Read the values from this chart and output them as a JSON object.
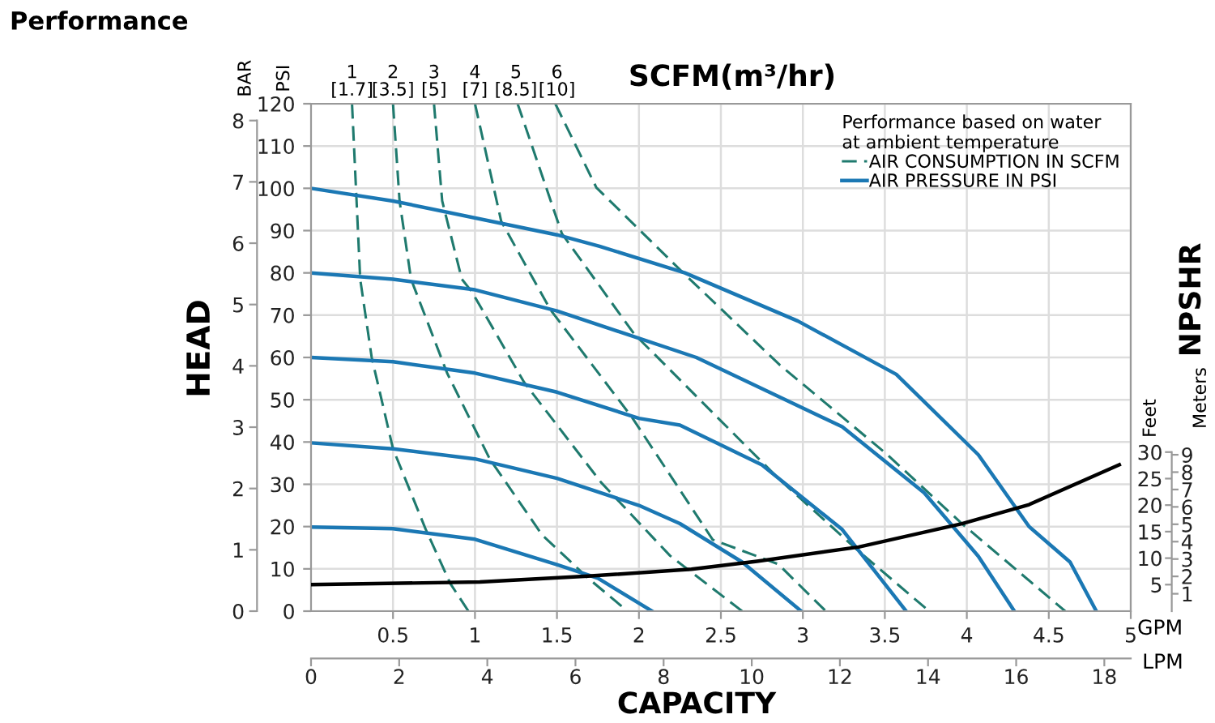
{
  "chart_data": [
    {
      "type": "line",
      "title": "Performance",
      "xlabel": "GPM",
      "ylabel": "PSI",
      "y2label": "BAR",
      "x2label": "LPM",
      "legend_title": "Performance based on water\nat ambient temperature",
      "annotations": [
        "SCFM(m³/hr)",
        "HEAD",
        "CAPACITY",
        {
          "text": "1\n[1.7]",
          "x": 0.25,
          "y": 120
        },
        {
          "text": "2\n[3.5]",
          "x": 0.5,
          "y": 120
        },
        {
          "text": "3\n[5]",
          "x": 0.75,
          "y": 120
        },
        {
          "text": "4\n[7]",
          "x": 1.0,
          "y": 120
        },
        {
          "text": "5\n[8.5]",
          "x": 1.25,
          "y": 120
        },
        {
          "text": "6\n[10]",
          "x": 1.5,
          "y": 120
        }
      ],
      "xlim": [
        0,
        5
      ],
      "xticks": [
        0.5,
        1,
        1.5,
        2,
        2.5,
        3,
        3.5,
        4,
        4.5,
        5
      ],
      "ylim": [
        0,
        120
      ],
      "yticks": [
        0,
        10,
        20,
        30,
        40,
        50,
        60,
        70,
        80,
        90,
        100,
        110,
        120
      ],
      "y2lim": [
        0,
        8.274
      ],
      "y2ticks": [
        0,
        1,
        2,
        3,
        4,
        5,
        6,
        7,
        8
      ],
      "x2lim": [
        0,
        18.6
      ],
      "x2ticks": [
        0,
        2,
        4,
        6,
        8,
        10,
        12,
        14,
        16,
        18
      ],
      "grid": true,
      "legend": "top right",
      "series": [
        {
          "name": "AIR CONSUMPTION IN SCFM",
          "color": "#1f7a6e",
          "line_style": "dashed",
          "x": [
            0.25,
            0.3,
            0.37,
            0.5,
            0.7,
            0.85,
            0.96
          ],
          "values": [
            120,
            78.5,
            60,
            38.4,
            19.3,
            6.5,
            0
          ]
        },
        {
          "color": "#1f7a6e",
          "line_style": "dashed",
          "x": [
            0.5,
            0.54,
            0.61,
            0.83,
            1.09,
            1.41,
            1.69,
            1.93
          ],
          "values": [
            120,
            97,
            78.5,
            56.3,
            36,
            18,
            7.8,
            0
          ]
        },
        {
          "color": "#1f7a6e",
          "line_style": "dashed",
          "x": [
            0.75,
            0.8,
            0.92,
            0.98,
            1.3,
            1.77,
            2.19,
            2.63
          ],
          "values": [
            120,
            97,
            78.5,
            75.6,
            54.1,
            30.4,
            13.1,
            0
          ]
        },
        {
          "color": "#1f7a6e",
          "line_style": "dashed",
          "x": [
            1.0,
            1.16,
            1.46,
            1.96,
            2.45,
            2.85,
            3.14
          ],
          "values": [
            120,
            92.2,
            71.3,
            45.7,
            16.9,
            11.1,
            0
          ]
        },
        {
          "color": "#1f7a6e",
          "line_style": "dashed",
          "x": [
            1.26,
            1.53,
            1.97,
            2.85,
            3.34,
            3.77
          ],
          "values": [
            120,
            89.3,
            65.6,
            31.4,
            14.2,
            0
          ]
        },
        {
          "color": "#1f7a6e",
          "line_style": "dashed",
          "x": [
            1.49,
            1.74,
            2.27,
            2.86,
            3.51,
            3.97,
            4.6
          ],
          "values": [
            120,
            100.2,
            80,
            58.2,
            37.2,
            20.7,
            0
          ]
        },
        {
          "name": "AIR PRESSURE IN PSI",
          "color": "#1b78b4",
          "line_style": "solid",
          "x": [
            0,
            0.5,
            1.5,
            1.76,
            2.28,
            2.97,
            3.57,
            4.07,
            4.38,
            4.63,
            4.79
          ],
          "values": [
            100,
            97,
            89,
            86.3,
            80,
            68.6,
            56,
            37,
            20,
            11.6,
            0
          ]
        },
        {
          "color": "#1b78b4",
          "line_style": "solid",
          "x": [
            0,
            0.5,
            1.0,
            1.5,
            2.35,
            3.24,
            3.74,
            4.07,
            4.29
          ],
          "values": [
            80,
            78.5,
            76,
            71,
            60,
            43.6,
            28,
            13,
            0
          ]
        },
        {
          "color": "#1b78b4",
          "line_style": "solid",
          "x": [
            0,
            0.5,
            1.0,
            1.5,
            2.0,
            2.25,
            2.75,
            3.24,
            3.63
          ],
          "values": [
            60,
            59,
            56.3,
            51.8,
            45.6,
            44,
            34.6,
            19.3,
            0
          ]
        },
        {
          "color": "#1b78b4",
          "line_style": "solid",
          "x": [
            0,
            0.5,
            1.0,
            1.5,
            2.0,
            2.25,
            2.63,
            2.99
          ],
          "values": [
            39.8,
            38.4,
            36,
            31.4,
            25,
            20.7,
            11.6,
            0
          ]
        },
        {
          "color": "#1b78b4",
          "line_style": "solid",
          "x": [
            0,
            0.5,
            1.0,
            1.5,
            1.75,
            2.08
          ],
          "values": [
            19.9,
            19.5,
            17,
            11,
            7.8,
            0
          ]
        }
      ]
    },
    {
      "type": "line",
      "ylabel": "Feet",
      "y2label": "Meters",
      "annotations": [
        "NPSHR"
      ],
      "tick_labels": "y",
      "xlim": [
        0,
        5
      ],
      "ylim": [
        0,
        95.7
      ],
      "yticks": [
        5,
        10,
        15,
        20,
        25,
        30
      ],
      "y2lim": [
        0,
        29.2
      ],
      "y2ticks": [
        1,
        2,
        3,
        4,
        5,
        6,
        7,
        8,
        9
      ],
      "series": [
        {
          "color": "#000000",
          "line_style": "solid",
          "x": [
            0,
            1.03,
            1.69,
            2.32,
            2.72,
            3.34,
            3.97,
            4.38,
            4.93
          ],
          "values": [
            5.0,
            5.5,
            6.6,
            7.9,
            9.4,
            12.1,
            16.5,
            20.1,
            27.6
          ]
        }
      ]
    }
  ]
}
